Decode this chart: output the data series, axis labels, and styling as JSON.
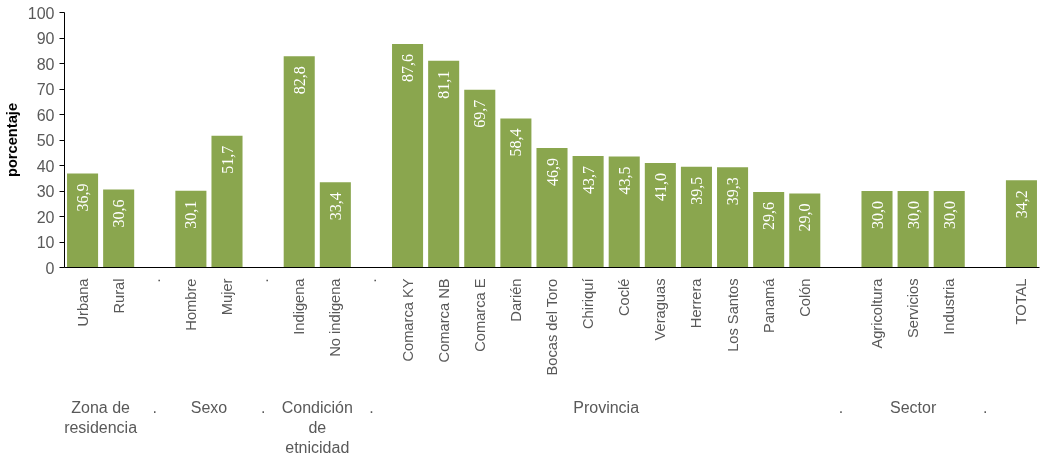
{
  "chart_data": {
    "type": "bar",
    "ylabel": "porcentaje",
    "categories": [
      "Urbana",
      "Rural",
      ".",
      "Hombre",
      "Mujer",
      ".",
      "Indigena",
      "No indigena",
      ".",
      "Comarca KY",
      "Comarca NB",
      "Comarca E",
      "Darién",
      "Bocas del Toro",
      "Chiriquí",
      "Coclé",
      "Veraguas",
      "Herrera",
      "Los Santos",
      "Panamá",
      "Colón",
      null,
      "Agricoltura",
      "Servicios",
      "Industria",
      null,
      "TOTAL"
    ],
    "values": [
      36.9,
      30.6,
      null,
      30.1,
      51.7,
      null,
      82.8,
      33.4,
      null,
      87.6,
      81.1,
      69.7,
      58.4,
      46.9,
      43.7,
      43.5,
      41.0,
      39.5,
      39.3,
      29.6,
      29.0,
      null,
      30.0,
      30.0,
      30.0,
      null,
      34.2
    ],
    "value_labels": [
      "36,9",
      "30,6",
      null,
      "30,1",
      "51,7",
      null,
      "82,8",
      "33,4",
      null,
      "87,6",
      "81,1",
      "69,7",
      "58,4",
      "46,9",
      "43,7",
      "43,5",
      "41,0",
      "39,5",
      "39,3",
      "29,6",
      "29,0",
      null,
      "30,0",
      "30,0",
      "30,0",
      null,
      "34,2"
    ],
    "color": "#8aa64e",
    "ylim": [
      0,
      100
    ],
    "yticks": [
      0,
      10,
      20,
      30,
      40,
      50,
      60,
      70,
      80,
      90,
      100
    ],
    "grid": false,
    "annotations": [
      "Zona de\nresidencia",
      ".",
      "Sexo",
      ".",
      "Condición\nde\netnicidad",
      ".",
      "Provincia",
      ".",
      "Sector",
      "."
    ]
  }
}
